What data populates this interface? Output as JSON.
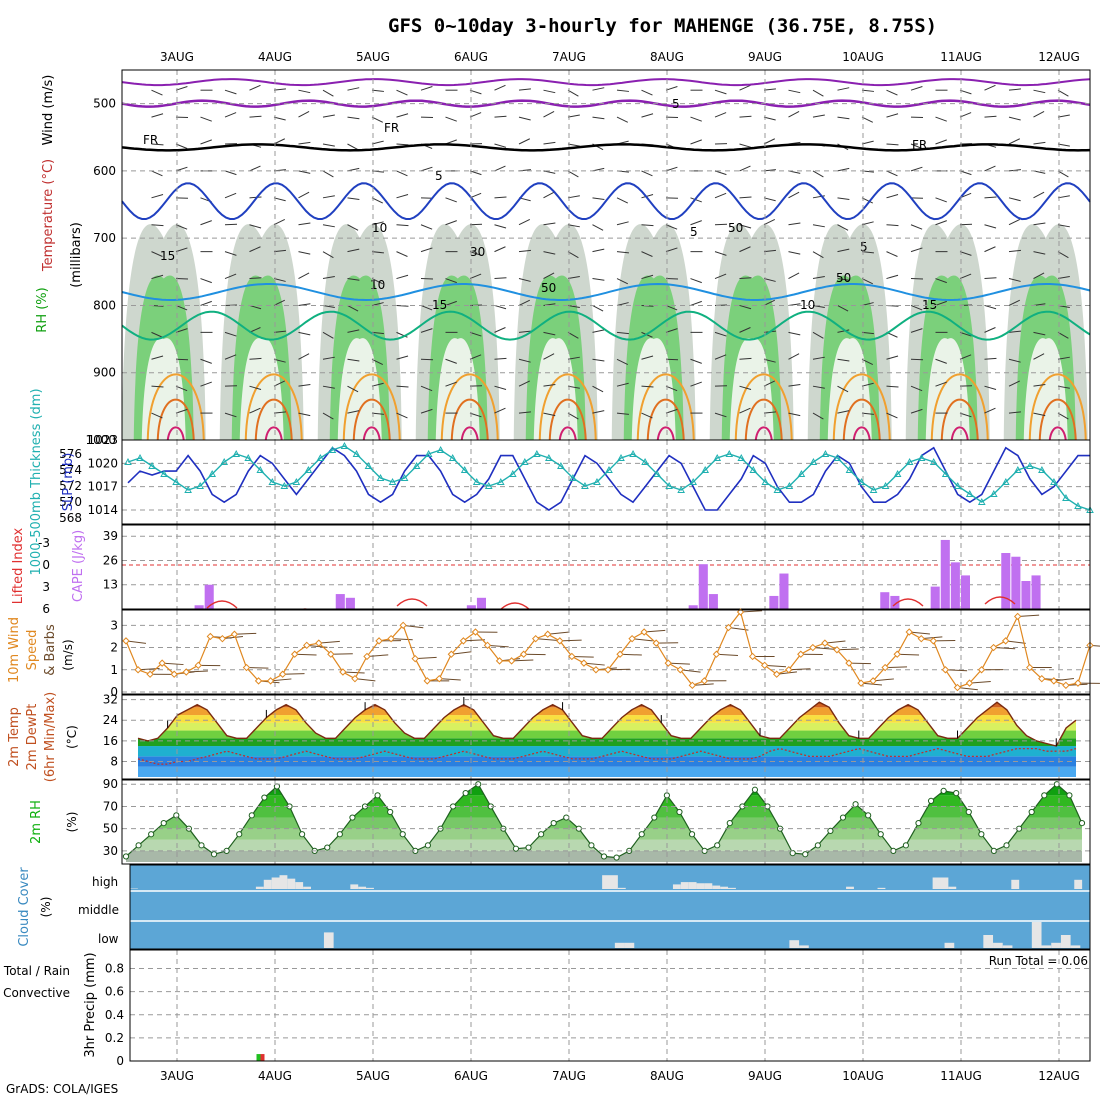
{
  "title": "GFS 0~10day 3-hourly for MAHENGE (36.75E, 8.75S)",
  "footer": "GrADS: COLA/IGES",
  "colors": {
    "temp_line": "#f0a030",
    "dew_line": "#c03030",
    "slp_line": "#2030c0",
    "thickness_line": "#20b0b0",
    "cape_bar": "#c070f0",
    "li_line": "#e03030",
    "wind_line": "#e08820",
    "rh_green": "#10b010",
    "cloud_bg": "#5ca6d6",
    "cloud_bar": "#e6e6e6",
    "rain": "#20c020",
    "conv": "#e03030"
  },
  "chart_data": [
    {
      "type": "heatmap",
      "panel": "upper-air",
      "dates": [
        "3AUG",
        "4AUG",
        "5AUG",
        "6AUG",
        "7AUG",
        "8AUG",
        "9AUG",
        "10AUG",
        "11AUG",
        "12AUG"
      ],
      "ylabel_parts": [
        "Wind (m/s)",
        "Temperature (°C)",
        "RH (%)"
      ],
      "yaxis_title": "(millibars)",
      "yticks": [
        500,
        600,
        700,
        800,
        900,
        1000
      ],
      "ylim": [
        1000,
        450
      ],
      "contour_labels": [
        "5",
        "FR",
        "FR",
        "FR",
        "5",
        "5",
        "5",
        "10",
        "10",
        "10",
        "15",
        "15",
        "15",
        "50",
        "50",
        "50",
        "30"
      ],
      "fr_level_mb": 565,
      "isotherm_5_mb": 615,
      "isotherm_10_mb": 780,
      "isotherm_15_mb": 830
    },
    {
      "type": "line",
      "panel": "slp-thickness",
      "ylabel_left": "1000-500mb Thickness (dm)",
      "ylabel_right": "SLP (mb)",
      "yticks_left": [
        568,
        570,
        572,
        574,
        576
      ],
      "yticks_right": [
        1014,
        1017,
        1020,
        1023
      ],
      "x": [
        0,
        1,
        2,
        3,
        4,
        5,
        6,
        7,
        8,
        9,
        10,
        11,
        12,
        13,
        14,
        15,
        16,
        17,
        18,
        19,
        20,
        21,
        22,
        23,
        24,
        25,
        26,
        27,
        28,
        29,
        30,
        31,
        32,
        33,
        34,
        35,
        36,
        37,
        38,
        39,
        40,
        41,
        42,
        43,
        44,
        45,
        46,
        47,
        48,
        49,
        50,
        51,
        52,
        53,
        54,
        55,
        56,
        57,
        58,
        59,
        60,
        61,
        62,
        63,
        64,
        65,
        66,
        67,
        68,
        69,
        70,
        71,
        72,
        73,
        74,
        75,
        76,
        77,
        78,
        79,
        80
      ],
      "series": [
        {
          "name": "SLP (mb)",
          "values": [
            1017.5,
            1019,
            1018.5,
            1019,
            1019,
            1021,
            1019,
            1016,
            1015,
            1016,
            1019,
            1021,
            1020,
            1018,
            1016,
            1018,
            1020,
            1022,
            1021,
            1019,
            1016,
            1015,
            1016,
            1019,
            1021,
            1021,
            1019,
            1016,
            1015,
            1016,
            1018,
            1021,
            1021,
            1018,
            1015,
            1014,
            1015,
            1018,
            1021,
            1020,
            1018,
            1016,
            1015,
            1017,
            1019,
            1021,
            1020,
            1017,
            1014,
            1014,
            1016,
            1018,
            1021,
            1020,
            1017,
            1015,
            1015,
            1016,
            1019,
            1021,
            1020,
            1017,
            1015,
            1015,
            1016,
            1018,
            1021,
            1022,
            1019,
            1016,
            1015,
            1016,
            1019,
            1022,
            1021,
            1018,
            1016,
            1017,
            1019,
            1021,
            1021
          ]
        },
        {
          "name": "1000-500mb Thickness (dm)",
          "values": [
            575,
            575.5,
            574.5,
            573.5,
            572.5,
            571.5,
            572,
            573.5,
            575,
            576,
            575.5,
            574,
            572.5,
            572,
            572.5,
            574,
            575.5,
            576.5,
            577,
            576,
            574.5,
            573,
            572.5,
            573,
            574.5,
            576,
            576.5,
            575.5,
            574,
            572.5,
            572,
            572.5,
            573.5,
            575,
            576,
            575.5,
            574.5,
            573,
            572,
            572.5,
            574,
            575.5,
            576,
            575,
            573.5,
            572,
            571.5,
            572.5,
            574,
            575.5,
            576,
            575.5,
            574,
            572.5,
            571.5,
            572,
            573.5,
            575,
            576,
            575.5,
            574,
            572.5,
            571.5,
            572,
            573.5,
            575,
            575.5,
            575,
            573.5,
            572,
            571,
            570,
            571,
            572.5,
            574,
            574.5,
            574,
            572.5,
            570.5,
            569.5,
            569
          ]
        }
      ]
    },
    {
      "type": "bar",
      "panel": "cape-li",
      "ylabel_left": "Lifted Index",
      "ylabel_right": "CAPE (J/kg)",
      "yticks_left": [
        -3,
        0,
        3,
        6
      ],
      "yticks_right": [
        13,
        26,
        39
      ],
      "x": [
        7,
        8,
        21,
        22,
        34,
        35,
        56,
        57,
        58,
        64,
        65,
        75,
        76,
        80,
        81,
        82,
        83,
        87,
        88,
        89,
        90,
        91,
        92,
        93
      ],
      "series": [
        {
          "name": "CAPE (J/kg)",
          "values": [
            2,
            13,
            8,
            6,
            2,
            6,
            2,
            24,
            8,
            7,
            19,
            9,
            7,
            12,
            37,
            25,
            18,
            30,
            28,
            15,
            18,
            0,
            0,
            0
          ]
        }
      ]
    },
    {
      "type": "line",
      "panel": "wind10m",
      "ylabel": "10m Wind Speed & Barbs (m/s)",
      "yticks": [
        0,
        1,
        2,
        3
      ],
      "ylim": [
        0,
        3.6
      ],
      "series": [
        {
          "name": "Speed",
          "values": [
            2.3,
            1.0,
            0.8,
            1.3,
            0.8,
            0.9,
            1.2,
            2.5,
            2.4,
            2.6,
            1.1,
            0.5,
            0.5,
            0.8,
            1.7,
            2.1,
            2.2,
            1.7,
            0.9,
            0.6,
            1.6,
            2.3,
            2.4,
            3.0,
            1.5,
            0.5,
            0.6,
            1.7,
            2.3,
            2.7,
            2.1,
            1.4,
            1.4,
            1.7,
            2.4,
            2.6,
            2.3,
            1.6,
            1.3,
            1.0,
            1.0,
            1.7,
            2.4,
            2.7,
            2.2,
            1.3,
            1.0,
            0.3,
            0.5,
            1.7,
            2.9,
            3.6,
            1.6,
            1.2,
            0.8,
            1.0,
            1.7,
            2.0,
            2.2,
            1.9,
            1.3,
            0.4,
            0.5,
            1.1,
            1.7,
            2.7,
            2.4,
            2.3,
            1.0,
            0.2,
            0.4,
            1.0,
            2.0,
            2.3,
            3.4,
            1.1,
            0.6,
            0.5,
            0.3,
            0.4,
            2.1
          ]
        }
      ]
    },
    {
      "type": "area",
      "panel": "temp2m",
      "ylabel": "2m Temp 2m DewPt (6hr Min/Max) (°C)",
      "yticks": [
        8,
        16,
        24,
        32
      ],
      "ylim": [
        2,
        33
      ],
      "series": [
        {
          "name": "2m Temp",
          "values": [
            17,
            16,
            17,
            21,
            26,
            28,
            30,
            28,
            23,
            18,
            17,
            17,
            21,
            25,
            28,
            30,
            28,
            23,
            19,
            17,
            17,
            21,
            25,
            28,
            30,
            28,
            23,
            19,
            17,
            17,
            21,
            25,
            28,
            30,
            28,
            23,
            18,
            17,
            17,
            21,
            25,
            28,
            30,
            28,
            23,
            18,
            17,
            17,
            21,
            25,
            28,
            30,
            28,
            23,
            18,
            17,
            17,
            21,
            25,
            28,
            30,
            28,
            23,
            18,
            17,
            17,
            21,
            25,
            28,
            31,
            29,
            23,
            18,
            17,
            17,
            21,
            25,
            28,
            30,
            28,
            23,
            18,
            17,
            17,
            21,
            25,
            28,
            31,
            28,
            22,
            18,
            16,
            15,
            14,
            21,
            24
          ]
        },
        {
          "name": "2m DewPt",
          "values": [
            9,
            8,
            7,
            7,
            8,
            8,
            9,
            10,
            11,
            12,
            11,
            10,
            9,
            9,
            9,
            10,
            11,
            12,
            11,
            10,
            9,
            9,
            9,
            10,
            11,
            12,
            11,
            10,
            9,
            9,
            9,
            10,
            11,
            12,
            11,
            10,
            9,
            9,
            9,
            10,
            11,
            12,
            11,
            10,
            9,
            9,
            9,
            10,
            11,
            12,
            11,
            10,
            9,
            9,
            9,
            10,
            11,
            12,
            11,
            10,
            9,
            9,
            9,
            10,
            12,
            13,
            12,
            11,
            10,
            10,
            10,
            11,
            12,
            13,
            12,
            11,
            10,
            10,
            10,
            11,
            12,
            13,
            12,
            11,
            10,
            10,
            10,
            11,
            12,
            13,
            13,
            13,
            12,
            12,
            12,
            13
          ]
        }
      ]
    },
    {
      "type": "area",
      "panel": "rh2m",
      "ylabel": "2m RH (%)",
      "yticks": [
        30,
        50,
        70,
        90
      ],
      "ylim": [
        20,
        92
      ],
      "series": [
        {
          "name": "2m RH",
          "values": [
            25,
            35,
            45,
            55,
            62,
            50,
            35,
            27,
            30,
            45,
            62,
            78,
            88,
            70,
            45,
            30,
            33,
            45,
            60,
            70,
            80,
            65,
            45,
            30,
            35,
            50,
            70,
            82,
            90,
            70,
            50,
            32,
            33,
            45,
            55,
            60,
            50,
            35,
            25,
            24,
            30,
            45,
            60,
            80,
            65,
            45,
            30,
            35,
            55,
            70,
            85,
            70,
            50,
            28,
            27,
            35,
            48,
            60,
            72,
            62,
            45,
            30,
            35,
            55,
            75,
            84,
            82,
            65,
            45,
            30,
            35,
            50,
            65,
            80,
            90,
            80,
            55
          ]
        }
      ]
    },
    {
      "type": "bar",
      "panel": "cloud",
      "ylabel": "Cloud Cover (%)",
      "levels": [
        "high",
        "middle",
        "low"
      ],
      "series": [
        {
          "name": "high",
          "values": [
            2,
            0,
            0,
            0,
            0,
            0,
            0,
            0,
            0,
            0,
            0,
            0,
            0,
            0,
            0,
            0,
            10,
            40,
            50,
            60,
            45,
            30,
            10,
            0,
            0,
            0,
            0,
            0,
            20,
            10,
            5,
            0,
            0,
            0,
            0,
            0,
            0,
            0,
            0,
            0,
            0,
            0,
            0,
            0,
            0,
            0,
            0,
            0,
            0,
            0,
            0,
            0,
            0,
            0,
            0,
            0,
            0,
            0,
            0,
            0,
            60,
            60,
            5,
            0,
            0,
            0,
            0,
            0,
            0,
            20,
            30,
            30,
            25,
            25,
            15,
            10,
            5,
            0,
            0,
            0,
            0,
            0,
            0,
            0,
            0,
            0,
            0,
            0,
            0,
            0,
            0,
            10,
            0,
            0,
            0,
            5,
            0,
            0,
            0,
            0,
            0,
            0,
            50,
            50,
            10,
            0,
            0,
            0,
            0,
            0,
            0,
            0,
            40,
            0,
            0,
            0,
            0,
            0,
            0,
            0,
            40,
            0
          ]
        },
        {
          "name": "low",
          "values": [
            0,
            0,
            0,
            0,
            0,
            0,
            0,
            0,
            0,
            0,
            0,
            0,
            0,
            0,
            0,
            0,
            0,
            0,
            0,
            0,
            60,
            0,
            0,
            0,
            0,
            0,
            0,
            0,
            0,
            0,
            0,
            0,
            0,
            0,
            0,
            0,
            0,
            0,
            0,
            0,
            0,
            0,
            0,
            0,
            0,
            0,
            0,
            0,
            0,
            0,
            20,
            20,
            0,
            0,
            0,
            0,
            0,
            0,
            0,
            0,
            0,
            0,
            0,
            0,
            0,
            0,
            0,
            0,
            30,
            10,
            0,
            0,
            0,
            0,
            0,
            0,
            0,
            0,
            0,
            0,
            0,
            0,
            0,
            0,
            20,
            0,
            0,
            0,
            50,
            20,
            10,
            0,
            0,
            100,
            10,
            20,
            50,
            10,
            0
          ]
        }
      ]
    },
    {
      "type": "bar",
      "panel": "precip",
      "ylabel": "3hr Precip (mm)",
      "legend": [
        "Total / Rain",
        "Convective"
      ],
      "yticks": [
        0,
        0.2,
        0.4,
        0.6,
        0.8
      ],
      "ylim": [
        0,
        0.96
      ],
      "run_total_label": "Run Total = 0.06",
      "x_hours": [
        42
      ],
      "series": [
        {
          "name": "Total / Rain",
          "values": [
            0.06
          ]
        },
        {
          "name": "Convective",
          "values": [
            0.06
          ]
        }
      ]
    }
  ]
}
